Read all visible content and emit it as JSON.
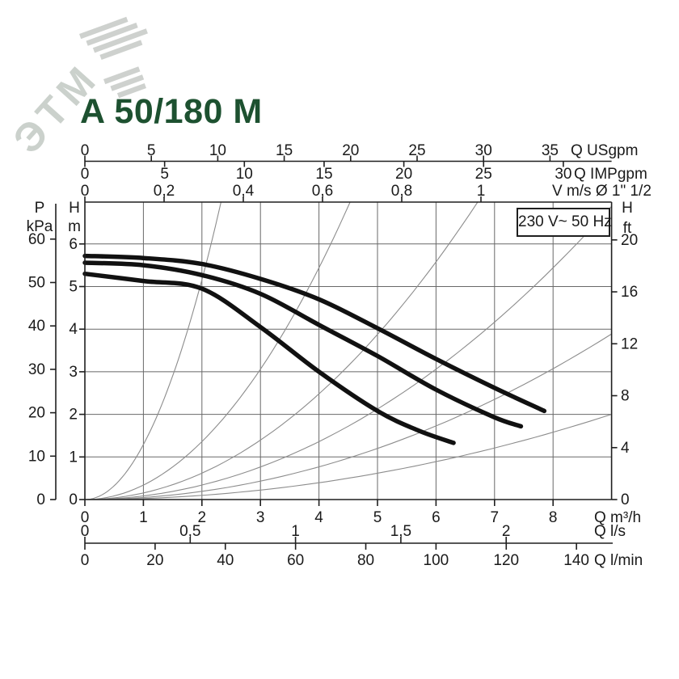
{
  "title": "A 50/180 M",
  "voltage_box": "230 V~ 50 Hz",
  "watermark": "ЭТМ",
  "chart_data": {
    "type": "line",
    "title": "A 50/180 M",
    "annotation": "230 V~ 50 Hz",
    "grid": true,
    "xlim_m3h": [
      0,
      9
    ],
    "ylim_m": [
      0,
      6.98
    ],
    "x_axes": [
      {
        "id": "usgpm",
        "unit": "Q USgpm",
        "ticks": [
          0,
          5,
          10,
          15,
          20,
          25,
          30,
          35
        ]
      },
      {
        "id": "impgpm",
        "unit": "Q IMPgpm",
        "ticks": [
          0,
          5,
          10,
          15,
          20,
          25,
          30
        ]
      },
      {
        "id": "vms",
        "unit": "V m/s Ø 1\" 1/2",
        "ticks": [
          0,
          0.2,
          0.4,
          0.6,
          0.8,
          1
        ],
        "labels": [
          "0",
          "0,2",
          "0,4",
          "0,6",
          "0,8",
          "1"
        ]
      },
      {
        "id": "m3h",
        "unit": "Q m³/h",
        "ticks": [
          0,
          1,
          2,
          3,
          4,
          5,
          6,
          7,
          8
        ]
      },
      {
        "id": "ls",
        "unit": "Q l/s",
        "ticks": [
          0,
          0.5,
          1,
          1.5,
          2
        ],
        "labels": [
          "0",
          "0,5",
          "1",
          "1,5",
          "2"
        ]
      },
      {
        "id": "lmin",
        "unit": "Q l/min",
        "ticks": [
          0,
          20,
          40,
          60,
          80,
          100,
          120,
          140
        ]
      }
    ],
    "y_axes": [
      {
        "id": "kpa",
        "unit_lines": [
          "P",
          "kPa"
        ],
        "ticks": [
          0,
          10,
          20,
          30,
          40,
          50,
          60
        ]
      },
      {
        "id": "hm",
        "unit_lines": [
          "H",
          "m"
        ],
        "ticks": [
          0,
          1,
          2,
          3,
          4,
          5,
          6
        ]
      },
      {
        "id": "hft",
        "unit_lines": [
          "H",
          "ft"
        ],
        "ticks": [
          0,
          4,
          8,
          12,
          16,
          20
        ]
      }
    ],
    "pump_curves": [
      {
        "name": "speed-max",
        "points": [
          [
            0,
            5.72
          ],
          [
            1,
            5.67
          ],
          [
            2,
            5.53
          ],
          [
            3,
            5.18
          ],
          [
            4,
            4.7
          ],
          [
            5,
            4.02
          ],
          [
            6,
            3.3
          ],
          [
            7,
            2.62
          ],
          [
            7.85,
            2.08
          ]
        ]
      },
      {
        "name": "speed-mid",
        "points": [
          [
            0,
            5.56
          ],
          [
            1,
            5.5
          ],
          [
            2,
            5.27
          ],
          [
            3,
            4.83
          ],
          [
            4,
            4.1
          ],
          [
            5,
            3.37
          ],
          [
            6,
            2.58
          ],
          [
            7,
            1.93
          ],
          [
            7.45,
            1.72
          ]
        ]
      },
      {
        "name": "speed-min",
        "points": [
          [
            0,
            5.3
          ],
          [
            1,
            5.13
          ],
          [
            2,
            4.95
          ],
          [
            3,
            4.05
          ],
          [
            4,
            3.0
          ],
          [
            5,
            2.08
          ],
          [
            5.7,
            1.62
          ],
          [
            6.3,
            1.33
          ]
        ]
      }
    ],
    "system_curves": {
      "model": "H = k·Q²",
      "k_values": [
        1.29,
        0.34,
        0.155,
        0.085,
        0.048,
        0.0247
      ]
    }
  }
}
